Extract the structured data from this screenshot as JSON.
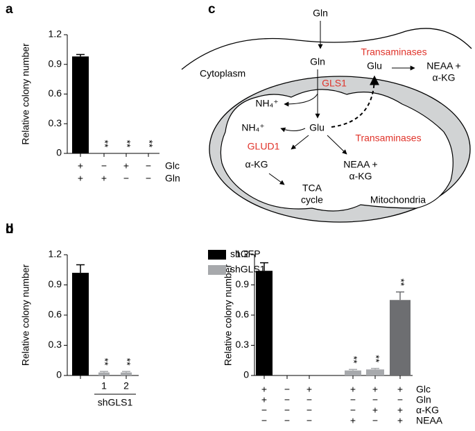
{
  "chart_data": [
    {
      "panel": "a",
      "type": "bar",
      "y_label": "Relative colony number",
      "ylim": [
        0,
        1.2
      ],
      "yticks": [
        0,
        0.3,
        0.6,
        0.9,
        1.2
      ],
      "values": [
        0.98,
        0,
        0,
        0
      ],
      "errors": [
        0.02,
        null,
        null,
        null
      ],
      "colors": [
        "#000000",
        "#000000",
        "#000000",
        "#000000"
      ],
      "significance": [
        null,
        "**",
        "**",
        "**"
      ],
      "conditions": [
        {
          "name": "Glc",
          "signs": [
            "+",
            "−",
            "+",
            "−"
          ]
        },
        {
          "name": "Gln",
          "signs": [
            "+",
            "+",
            "−",
            "−"
          ]
        }
      ]
    },
    {
      "panel": "b",
      "type": "bar",
      "y_label": "Relative colony number",
      "ylim": [
        0,
        1.2
      ],
      "yticks": [
        0,
        0.3,
        0.6,
        0.9,
        1.2
      ],
      "categories": [
        null,
        "1",
        "2"
      ],
      "group_label": "shGLS1",
      "series": [
        {
          "name": "shGFP",
          "color": "#000000",
          "values": [
            1.02,
            null,
            null
          ],
          "errors": [
            0.08,
            null,
            null
          ]
        },
        {
          "name": "shGLS1",
          "color": "#a7a9ac",
          "values": [
            null,
            0.03,
            0.03
          ],
          "errors": [
            null,
            0.01,
            0.01
          ]
        }
      ],
      "significance": [
        null,
        "**",
        "**"
      ]
    },
    {
      "panel": "d",
      "type": "bar",
      "y_label": "Relative colony number",
      "ylim": [
        0,
        1.2
      ],
      "yticks": [
        0,
        0.3,
        0.6,
        0.9,
        1.2
      ],
      "values": [
        1.04,
        0,
        0,
        0.05,
        0.06,
        0.75
      ],
      "errors": [
        0.08,
        null,
        null,
        0.01,
        0.01,
        0.08
      ],
      "colors": [
        "#000000",
        "#000000",
        "#000000",
        "#a7a9ac",
        "#a7a9ac",
        "#6d6e71"
      ],
      "significance": [
        null,
        null,
        null,
        "**",
        "**",
        "**"
      ],
      "conditions": [
        {
          "name": "Glc",
          "signs": [
            "+",
            "−",
            "+",
            "+",
            "+",
            "+"
          ]
        },
        {
          "name": "Gln",
          "signs": [
            "+",
            "−",
            "−",
            "−",
            "−",
            "−"
          ]
        },
        {
          "name": "α-KG",
          "signs": [
            "−",
            "−",
            "−",
            "−",
            "+",
            "+"
          ]
        },
        {
          "name": "NEAA",
          "signs": [
            "−",
            "−",
            "−",
            "+",
            "−",
            "+"
          ]
        }
      ]
    }
  ],
  "diagram": {
    "panel": "c",
    "gln_out": "Gln",
    "gln_in": "Gln",
    "cytoplasm": "Cytoplasm",
    "transaminases_cyto": "Transaminases",
    "glu_cyto": "Glu",
    "neaa_cyto": "NEAA +",
    "akg_cyto": "α-KG",
    "gls1": "GLS1",
    "nh4_a": "NH₄⁺",
    "nh4_b": "NH₄⁺",
    "glu_mito": "Glu",
    "transaminases_mito": "Transaminases",
    "glud1": "GLUD1",
    "akg_mito": "α-KG",
    "neaa_mito": "NEAA +",
    "akg_mito2": "α-KG",
    "tca": "TCA",
    "cycle": "cycle",
    "mitochondria": "Mitochondria"
  }
}
